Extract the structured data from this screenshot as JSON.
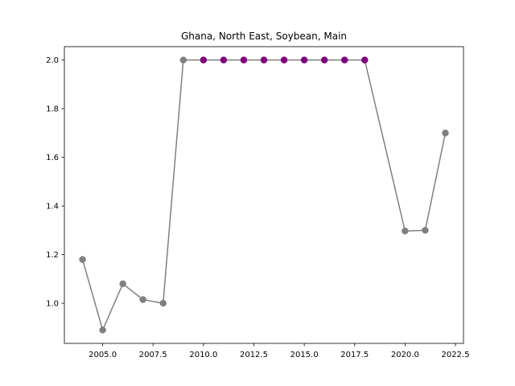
{
  "chart_data": {
    "type": "line",
    "title": "Ghana, North East, Soybean, Main",
    "xlabel": "",
    "ylabel": "",
    "xlim": [
      2003.1,
      2022.9
    ],
    "ylim": [
      0.835,
      2.055
    ],
    "x_ticks": [
      2005.0,
      2007.5,
      2010.0,
      2012.5,
      2015.0,
      2017.5,
      2020.0,
      2022.5
    ],
    "x_tick_labels": [
      "2005.0",
      "2007.5",
      "2010.0",
      "2012.5",
      "2015.0",
      "2017.5",
      "2020.0",
      "2022.5"
    ],
    "y_ticks": [
      1.0,
      1.2,
      1.4,
      1.6,
      1.8,
      2.0
    ],
    "y_tick_labels": [
      "1.0",
      "1.2",
      "1.4",
      "1.6",
      "1.8",
      "2.0"
    ],
    "grid": false,
    "series": [
      {
        "color": "#808080",
        "x": [
          2004,
          2005,
          2006,
          2007,
          2008,
          2009,
          2010,
          2011,
          2012,
          2013,
          2014,
          2015,
          2016,
          2017,
          2018,
          2020,
          2021,
          2022
        ],
        "y": [
          1.18,
          0.89,
          1.08,
          1.015,
          1.0,
          2.0,
          2.0,
          2.0,
          2.0,
          2.0,
          2.0,
          2.0,
          2.0,
          2.0,
          2.0,
          1.297,
          1.3,
          1.7
        ],
        "highlight_color": "#800080",
        "highlighted_x": [
          2010,
          2011,
          2012,
          2013,
          2014,
          2015,
          2016,
          2017,
          2018
        ]
      }
    ]
  }
}
